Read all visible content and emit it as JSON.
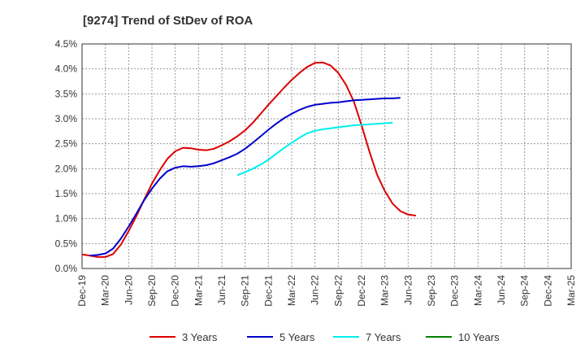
{
  "chart_data": {
    "type": "line",
    "title": "[9274]  Trend of StDev of ROA",
    "xlabel": "",
    "ylabel": "",
    "x_tick_labels": [
      "Dec-19",
      "Mar-20",
      "Jun-20",
      "Sep-20",
      "Dec-20",
      "Mar-21",
      "Jun-21",
      "Sep-21",
      "Dec-21",
      "Mar-22",
      "Jun-22",
      "Sep-22",
      "Dec-22",
      "Mar-23",
      "Jun-23",
      "Sep-23",
      "Dec-23",
      "Mar-24",
      "Jun-24",
      "Sep-24",
      "Dec-24",
      "Mar-25"
    ],
    "y_tick_labels": [
      "0.0%",
      "0.5%",
      "1.0%",
      "1.5%",
      "2.0%",
      "2.5%",
      "3.0%",
      "3.5%",
      "4.0%",
      "4.5%"
    ],
    "ylim": [
      0,
      4.5
    ],
    "grid": true,
    "legend_position": "bottom",
    "series": [
      {
        "name": "3 Years",
        "color": "#dd0000",
        "start_index": 0,
        "values": [
          0.28,
          0.26,
          0.23,
          0.23,
          0.29,
          0.48,
          0.75,
          1.05,
          1.38,
          1.7,
          1.97,
          2.2,
          2.35,
          2.42,
          2.41,
          2.38,
          2.37,
          2.4,
          2.47,
          2.55,
          2.65,
          2.77,
          2.92,
          3.1,
          3.28,
          3.45,
          3.62,
          3.78,
          3.92,
          4.04,
          4.12,
          4.13,
          4.07,
          3.92,
          3.68,
          3.35,
          2.87,
          2.35,
          1.88,
          1.55,
          1.3,
          1.15,
          1.08,
          1.06
        ]
      },
      {
        "name": "5 Years",
        "color": "#0000cc",
        "start_index": 1,
        "values": [
          0.26,
          0.27,
          0.3,
          0.4,
          0.6,
          0.84,
          1.1,
          1.37,
          1.6,
          1.8,
          1.95,
          2.02,
          2.05,
          2.04,
          2.05,
          2.07,
          2.11,
          2.17,
          2.23,
          2.3,
          2.4,
          2.52,
          2.65,
          2.78,
          2.9,
          3.01,
          3.1,
          3.18,
          3.24,
          3.28,
          3.3,
          3.32,
          3.33,
          3.35,
          3.37,
          3.38,
          3.39,
          3.4,
          3.41,
          3.41,
          3.42
        ]
      },
      {
        "name": "7 Years",
        "color": "#00eeee",
        "start_index": 20,
        "values": [
          1.87,
          1.93,
          2.0,
          2.08,
          2.18,
          2.3,
          2.41,
          2.52,
          2.62,
          2.71,
          2.76,
          2.79,
          2.81,
          2.83,
          2.85,
          2.87,
          2.88,
          2.89,
          2.9,
          2.91,
          2.92
        ]
      },
      {
        "name": "10 Years",
        "color": "#008000",
        "start_index": 0,
        "values": []
      }
    ]
  }
}
